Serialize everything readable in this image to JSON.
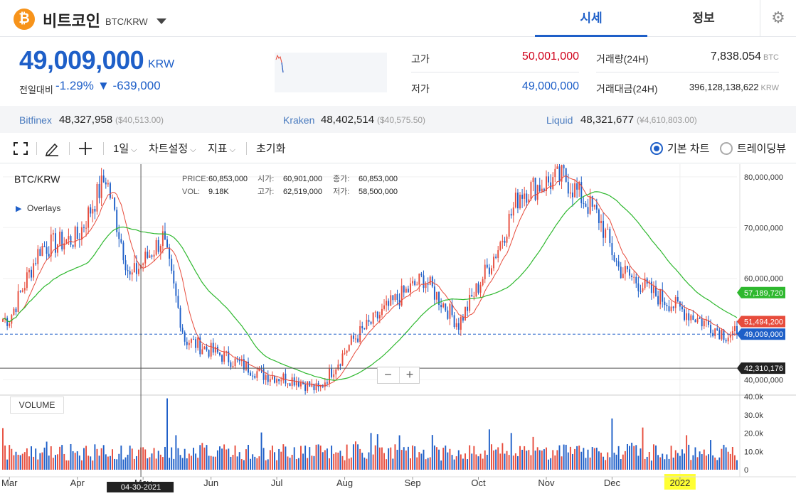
{
  "header": {
    "coin_symbol": "₿",
    "coin_name": "비트코인",
    "pair": "BTC/KRW",
    "tabs": [
      {
        "label": "시세",
        "active": true
      },
      {
        "label": "정보",
        "active": false
      }
    ],
    "icons": {
      "coin": "bitcoin-icon",
      "dropdown": "chevron-down-icon",
      "settings": "gear-icon"
    }
  },
  "price": {
    "current": "49,009,000",
    "unit": "KRW",
    "change_label": "전일대비",
    "change_pct": "-1.29%",
    "change_amt": "▼ -639,000",
    "color": "#1e5fc8"
  },
  "stats": {
    "high_label": "고가",
    "high_value": "50,001,000",
    "low_label": "저가",
    "low_value": "49,000,000",
    "volume_label": "거래량(24H)",
    "volume_value": "7,838.054",
    "volume_unit": "BTC",
    "amount_label": "거래대금(24H)",
    "amount_value": "396,128,138,622",
    "amount_unit": "KRW",
    "high_color": "#d0021b",
    "low_color": "#1e5fc8"
  },
  "exchanges": [
    {
      "name": "Bitfinex",
      "value": "48,327,958",
      "usd": "($40,513.00)"
    },
    {
      "name": "Kraken",
      "value": "48,402,514",
      "usd": "($40,575.50)"
    },
    {
      "name": "Liquid",
      "value": "48,321,677",
      "usd": "(¥4,610,803.00)"
    }
  ],
  "toolbar": {
    "period": "1일",
    "chart_settings": "차트설정",
    "indicators": "지표",
    "reset": "초기화",
    "radio_basic": "기본 차트",
    "radio_tv": "트레이딩뷰",
    "selected": "기본 차트"
  },
  "chart_data": {
    "type": "candlestick",
    "symbol": "BTC/KRW",
    "overlays_label": "Overlays",
    "info": {
      "price_label": "PRICE:",
      "price": "60,853,000",
      "vol_label": "VOL:",
      "vol": "9.18K",
      "open_label": "시가:",
      "open": "60,901,000",
      "close_label": "종가:",
      "close": "60,853,000",
      "high_label": "고가:",
      "high": "62,519,000",
      "low_label": "저가:",
      "low": "58,500,000"
    },
    "y_ticks": [
      "80,000,000",
      "70,000,000",
      "60,000,000",
      "40,000,000"
    ],
    "y_tick_values": [
      80000000,
      70000000,
      60000000,
      40000000
    ],
    "ylim": [
      37000000,
      82500000
    ],
    "x_ticks": [
      "Mar",
      "Apr",
      "May",
      "Jun",
      "Jul",
      "Aug",
      "Sep",
      "Oct",
      "Nov",
      "Dec",
      "2022"
    ],
    "crosshair_date": "04-30-2021",
    "crosshair_price": "42,310,176",
    "markers": [
      {
        "label": "57,189,720",
        "value": 57189720,
        "color": "#2eb82e"
      },
      {
        "label": "51,494,200",
        "value": 51494200,
        "color": "#e74c3c"
      },
      {
        "label": "49,009,000",
        "value": 49009000,
        "color": "#1e5fc8"
      }
    ],
    "close_series_approx": [
      {
        "x": "2021-03-01",
        "y": 52000000
      },
      {
        "x": "2021-03-15",
        "y": 66000000
      },
      {
        "x": "2021-04-01",
        "y": 68000000
      },
      {
        "x": "2021-04-14",
        "y": 80000000
      },
      {
        "x": "2021-04-25",
        "y": 60000000
      },
      {
        "x": "2021-05-10",
        "y": 68000000
      },
      {
        "x": "2021-05-20",
        "y": 48000000
      },
      {
        "x": "2021-06-10",
        "y": 44000000
      },
      {
        "x": "2021-06-25",
        "y": 41000000
      },
      {
        "x": "2021-07-10",
        "y": 40000000
      },
      {
        "x": "2021-07-20",
        "y": 38000000
      },
      {
        "x": "2021-08-05",
        "y": 48000000
      },
      {
        "x": "2021-08-25",
        "y": 56000000
      },
      {
        "x": "2021-09-06",
        "y": 60000000
      },
      {
        "x": "2021-09-22",
        "y": 51000000
      },
      {
        "x": "2021-10-10",
        "y": 66000000
      },
      {
        "x": "2021-10-20",
        "y": 77000000
      },
      {
        "x": "2021-11-09",
        "y": 80000000
      },
      {
        "x": "2021-11-25",
        "y": 72000000
      },
      {
        "x": "2021-12-04",
        "y": 62000000
      },
      {
        "x": "2021-12-20",
        "y": 57000000
      },
      {
        "x": "2022-01-05",
        "y": 53000000
      },
      {
        "x": "2022-01-22",
        "y": 49009000
      }
    ],
    "volume": {
      "label": "VOLUME",
      "y_ticks": [
        "40.0k",
        "30.0k",
        "20.0k",
        "10.0k",
        "0"
      ],
      "y_tick_values": [
        40000,
        30000,
        20000,
        10000,
        0
      ],
      "ylim": [
        0,
        40000
      ]
    },
    "colors": {
      "up": "#e74c3c",
      "down": "#1e5fc8",
      "ma_short": "#e74c3c",
      "ma_long": "#2eb82e"
    }
  }
}
